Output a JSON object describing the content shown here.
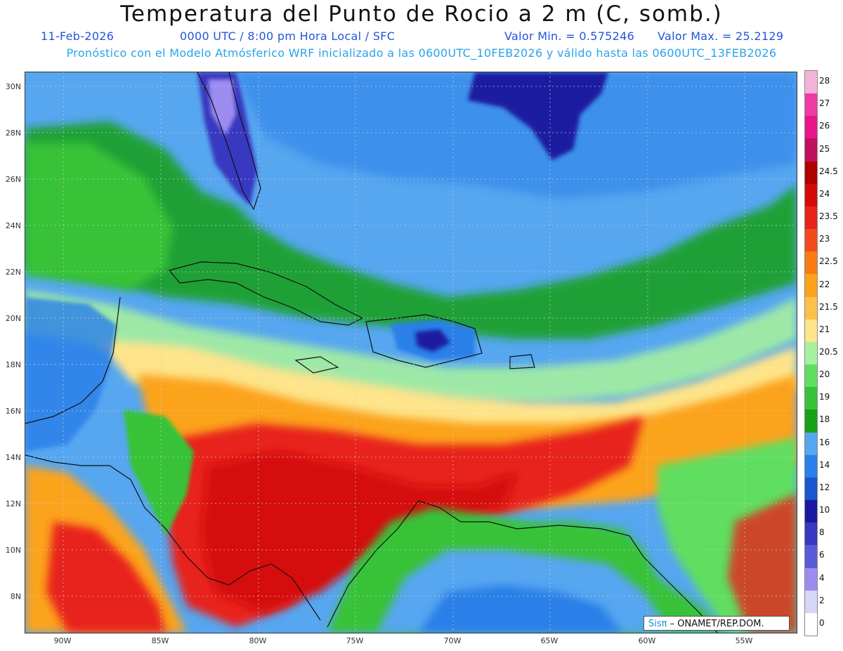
{
  "header": {
    "title": "Temperatura del Punto de Rocio a 2 m (C, somb.)",
    "date": "11-Feb-2026",
    "time": "0000 UTC / 8:00 pm Hora Local / SFC",
    "min_value": "Valor Min. = 0.575246",
    "max_value": "Valor Max. = 25.2129",
    "model_info": "Pronóstico con el Modelo Atmósferico WRF inicializado a las 0600UTC_10FEB2026 y válido hasta las  0600UTC_13FEB2026"
  },
  "axes": {
    "lat_labels": [
      "30N",
      "28N",
      "26N",
      "24N",
      "22N",
      "20N",
      "18N",
      "16N",
      "14N",
      "12N",
      "10N",
      "8N"
    ],
    "lon_labels": [
      "90W",
      "85W",
      "80W",
      "75W",
      "70W",
      "65W",
      "60W",
      "55W"
    ]
  },
  "colorbar": {
    "labels": [
      "28",
      "27",
      "26",
      "25",
      "24.5",
      "24",
      "23.5",
      "23",
      "22.5",
      "22",
      "21.5",
      "21",
      "20.5",
      "20",
      "19",
      "18",
      "16",
      "14",
      "12",
      "10",
      "8",
      "6",
      "4",
      "2",
      "0"
    ],
    "colors": [
      "#f4b4d8",
      "#ee3aa5",
      "#e8168a",
      "#c20f5e",
      "#b00000",
      "#d50b0b",
      "#e8231a",
      "#f24a1c",
      "#fa7a14",
      "#fca31c",
      "#fdc14a",
      "#fee48a",
      "#a6f0a0",
      "#60de60",
      "#38c238",
      "#18a018",
      "#56a6f0",
      "#2a7fe8",
      "#1a56d0",
      "#1a1aa0",
      "#3838c0",
      "#5a5ad8",
      "#9c8cf0",
      "#d6d6f6",
      "#ffffff"
    ]
  },
  "credit": {
    "sis": "Sisπ",
    "org": " – ONAMET/REP.DOM."
  }
}
